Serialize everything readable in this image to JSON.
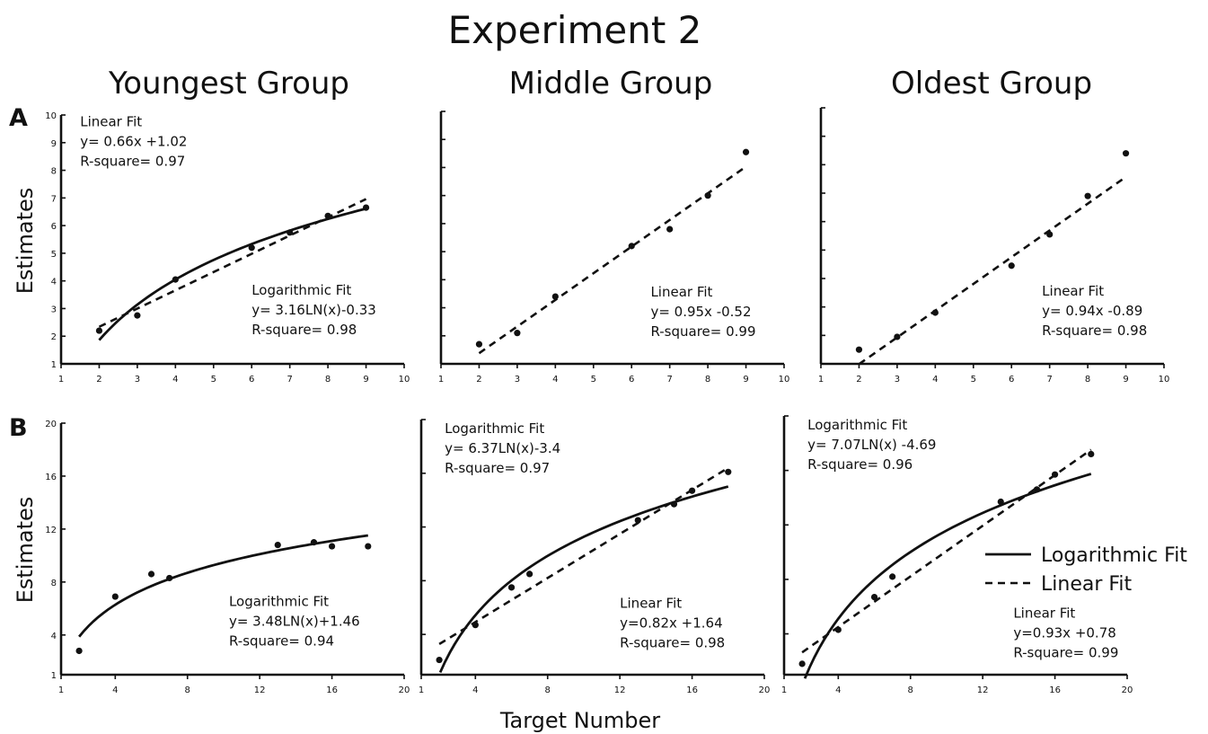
{
  "figure": {
    "title": "Experiment 2",
    "column_titles": [
      "Youngest Group",
      "Middle Group",
      "Oldest Group"
    ],
    "row_labels": [
      "A",
      "B"
    ],
    "ylabel": "Estimates",
    "xlabel": "Target Number",
    "legend": [
      {
        "label": "Logarithmic Fit",
        "style": "solid"
      },
      {
        "label": "Linear Fit",
        "style": "dashed"
      }
    ]
  },
  "chart_data": [
    {
      "id": "A-youngest",
      "type": "scatter",
      "row": "A",
      "group": "Youngest Group",
      "xlim": [
        1,
        10
      ],
      "ylim": [
        1,
        10
      ],
      "xticks": [
        1,
        2,
        3,
        4,
        5,
        6,
        7,
        8,
        9,
        10
      ],
      "yticks": [
        1,
        2,
        3,
        4,
        5,
        6,
        7,
        8,
        9,
        10
      ],
      "points": [
        [
          2,
          2.2
        ],
        [
          3,
          2.75
        ],
        [
          4,
          4.05
        ],
        [
          6,
          5.2
        ],
        [
          7,
          5.75
        ],
        [
          8,
          6.35
        ],
        [
          9,
          6.65
        ]
      ],
      "fits": [
        {
          "kind": "linear",
          "slope": 0.66,
          "intercept": 1.02,
          "domain": [
            2,
            9
          ]
        },
        {
          "kind": "logarithmic",
          "a": 3.16,
          "b": -0.33,
          "domain": [
            2,
            9
          ]
        }
      ],
      "annotations": [
        {
          "lines": [
            "Linear Fit",
            "y= 0.66x +1.02",
            "R-square= 0.97"
          ],
          "anchor": [
            1.5,
            9.6
          ]
        },
        {
          "lines": [
            "Logarithmic Fit",
            "y= 3.16LN(x)-0.33",
            "R-square= 0.98"
          ],
          "anchor": [
            6.0,
            3.5
          ]
        }
      ]
    },
    {
      "id": "A-middle",
      "type": "scatter",
      "row": "A",
      "group": "Middle Group",
      "xlim": [
        1,
        10
      ],
      "ylim": [
        1,
        10
      ],
      "xticks": [
        1,
        2,
        3,
        4,
        5,
        6,
        7,
        8,
        9,
        10
      ],
      "yticks": [],
      "points": [
        [
          2,
          1.7
        ],
        [
          3,
          2.1
        ],
        [
          4,
          3.4
        ],
        [
          6,
          5.2
        ],
        [
          7,
          5.8
        ],
        [
          8,
          7.0
        ],
        [
          9,
          8.55
        ]
      ],
      "fits": [
        {
          "kind": "linear",
          "slope": 0.95,
          "intercept": -0.52,
          "domain": [
            2,
            9
          ]
        }
      ],
      "annotations": [
        {
          "lines": [
            "Linear Fit",
            "y= 0.95x -0.52",
            "R-square= 0.99"
          ],
          "anchor": [
            6.5,
            3.4
          ]
        }
      ]
    },
    {
      "id": "A-oldest",
      "type": "scatter",
      "row": "A",
      "group": "Oldest Group",
      "xlim": [
        1,
        10
      ],
      "ylim": [
        1,
        10
      ],
      "xticks": [
        1,
        2,
        3,
        4,
        5,
        6,
        7,
        8,
        9,
        10
      ],
      "yticks": [],
      "points": [
        [
          2,
          1.5
        ],
        [
          3,
          1.95
        ],
        [
          4,
          2.8
        ],
        [
          6,
          4.45
        ],
        [
          7,
          5.55
        ],
        [
          8,
          6.9
        ],
        [
          9,
          8.4
        ]
      ],
      "fits": [
        {
          "kind": "linear",
          "slope": 0.94,
          "intercept": -0.89,
          "domain": [
            2,
            9
          ]
        }
      ],
      "annotations": [
        {
          "lines": [
            "Linear Fit",
            "y= 0.94x -0.89",
            "R-square= 0.98"
          ],
          "anchor": [
            6.8,
            3.4
          ]
        }
      ]
    },
    {
      "id": "B-youngest",
      "type": "scatter",
      "row": "B",
      "group": "Youngest Group",
      "xlim": [
        1,
        20
      ],
      "ylim": [
        1,
        20
      ],
      "xticks": [
        1,
        4,
        8,
        12,
        16,
        20
      ],
      "yticks": [
        1,
        4,
        8,
        12,
        16,
        20
      ],
      "points": [
        [
          2,
          2.8
        ],
        [
          4,
          6.9
        ],
        [
          6,
          8.6
        ],
        [
          7,
          8.3
        ],
        [
          13,
          10.8
        ],
        [
          15,
          11.0
        ],
        [
          16,
          10.7
        ],
        [
          18,
          10.7
        ]
      ],
      "fits": [
        {
          "kind": "logarithmic",
          "a": 3.48,
          "b": 1.46,
          "domain": [
            2,
            18
          ]
        }
      ],
      "annotations": [
        {
          "lines": [
            "Logarithmic Fit",
            "y= 3.48LN(x)+1.46",
            "R-square= 0.94"
          ],
          "anchor": [
            10.3,
            6.2
          ]
        }
      ]
    },
    {
      "id": "B-middle",
      "type": "scatter",
      "row": "B",
      "group": "Middle Group",
      "xlim": [
        1,
        20
      ],
      "ylim": [
        1,
        20
      ],
      "xticks": [
        1,
        4,
        8,
        12,
        16,
        20
      ],
      "yticks": [],
      "points": [
        [
          2,
          2.1
        ],
        [
          4,
          4.7
        ],
        [
          6,
          7.5
        ],
        [
          7,
          8.5
        ],
        [
          13,
          12.5
        ],
        [
          15,
          13.7
        ],
        [
          16,
          14.7
        ],
        [
          18,
          16.1
        ]
      ],
      "fits": [
        {
          "kind": "logarithmic",
          "a": 6.37,
          "b": -3.4,
          "domain": [
            2.05,
            18
          ]
        },
        {
          "kind": "linear",
          "slope": 0.82,
          "intercept": 1.64,
          "domain": [
            2,
            18
          ]
        }
      ],
      "annotations": [
        {
          "lines": [
            "Logarithmic Fit",
            "y= 6.37LN(x)-3.4",
            "R-square= 0.97"
          ],
          "anchor": [
            2.3,
            19.0
          ]
        },
        {
          "lines": [
            "Linear Fit",
            "y=0.82x +1.64",
            "R-square= 0.98"
          ],
          "anchor": [
            12.0,
            6.0
          ]
        }
      ]
    },
    {
      "id": "B-oldest",
      "type": "scatter",
      "row": "B",
      "group": "Oldest Group",
      "xlim": [
        1,
        20
      ],
      "ylim": [
        1,
        20
      ],
      "xticks": [
        1,
        4,
        8,
        12,
        16,
        20
      ],
      "yticks": [],
      "points": [
        [
          2,
          1.8
        ],
        [
          4,
          4.3
        ],
        [
          6,
          6.7
        ],
        [
          7,
          8.2
        ],
        [
          13,
          13.7
        ],
        [
          15,
          14.6
        ],
        [
          16,
          15.7
        ],
        [
          18,
          17.2
        ]
      ],
      "fits": [
        {
          "kind": "logarithmic",
          "a": 7.07,
          "b": -4.69,
          "domain": [
            2.15,
            18
          ]
        },
        {
          "kind": "linear",
          "slope": 0.93,
          "intercept": 0.78,
          "domain": [
            2,
            18
          ]
        }
      ],
      "annotations": [
        {
          "lines": [
            "Logarithmic Fit",
            "y= 7.07LN(x) -4.69",
            "R-square= 0.96"
          ],
          "anchor": [
            2.3,
            19.0
          ]
        },
        {
          "lines": [
            "Linear Fit",
            "y=0.93x +0.78",
            "R-square= 0.99"
          ],
          "anchor": [
            13.7,
            5.2
          ]
        }
      ]
    }
  ]
}
